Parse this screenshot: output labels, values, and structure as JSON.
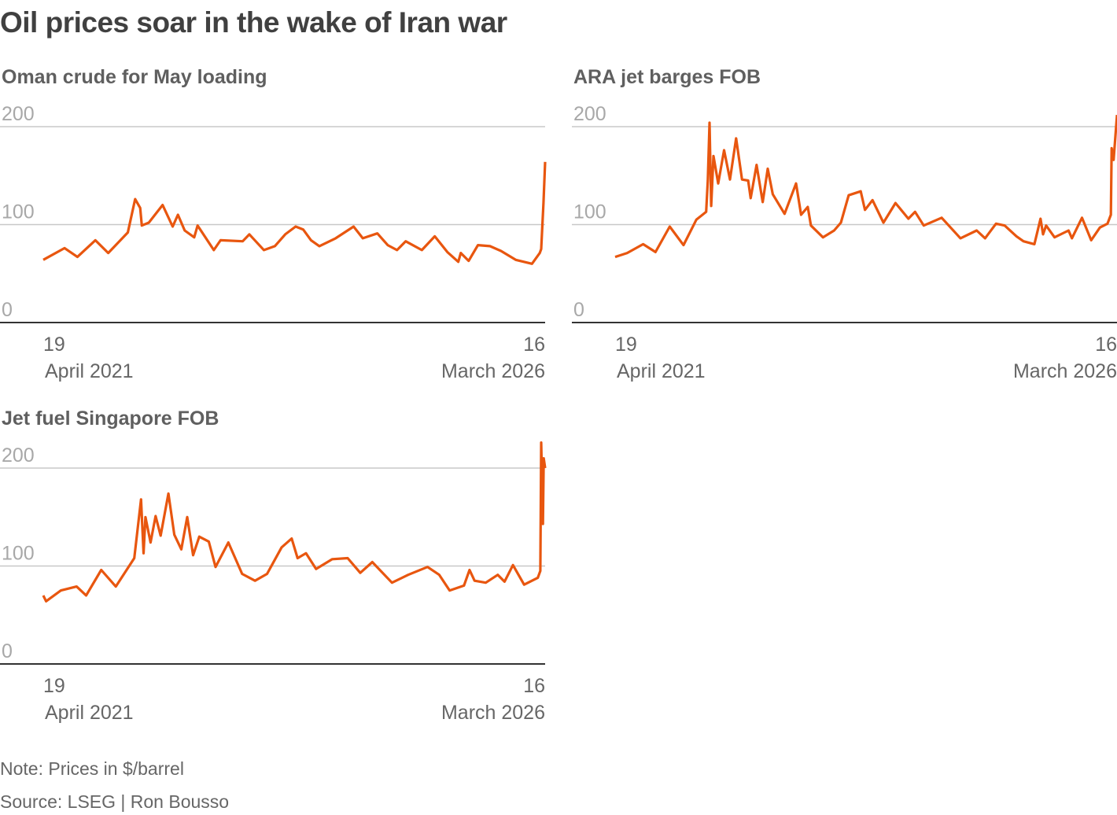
{
  "title": "Oil prices soar in the wake of Iran war",
  "note": "Note: Prices in $/barrel",
  "source": "Source: LSEG | Ron Bousso",
  "line_color": "#e8560f",
  "chart_data": [
    {
      "type": "line",
      "title": "Oman crude for May loading",
      "ylim": [
        0,
        200
      ],
      "yticks": [
        "200",
        "100",
        "0"
      ],
      "xlim": [
        "2021-04-19",
        "2026-03-16"
      ],
      "x_start_label": {
        "day": "19",
        "month": "April 2021"
      },
      "x_end_label": {
        "day": "16",
        "month": "March 2026"
      },
      "grid": true,
      "points": [
        [
          "2021-04-19",
          64
        ],
        [
          "2021-07-04",
          76
        ],
        [
          "2021-08-19",
          67
        ],
        [
          "2021-10-22",
          84
        ],
        [
          "2021-12-07",
          71
        ],
        [
          "2022-02-15",
          92
        ],
        [
          "2022-03-13",
          126
        ],
        [
          "2022-03-31",
          117
        ],
        [
          "2022-04-06",
          99
        ],
        [
          "2022-05-01",
          102
        ],
        [
          "2022-06-19",
          120
        ],
        [
          "2022-07-25",
          98
        ],
        [
          "2022-08-13",
          110
        ],
        [
          "2022-09-06",
          94
        ],
        [
          "2022-10-10",
          87
        ],
        [
          "2022-10-22",
          99
        ],
        [
          "2022-12-19",
          74
        ],
        [
          "2023-01-12",
          84
        ],
        [
          "2023-04-01",
          83
        ],
        [
          "2023-04-25",
          90
        ],
        [
          "2023-06-16",
          74
        ],
        [
          "2023-07-25",
          78
        ],
        [
          "2023-08-31",
          90
        ],
        [
          "2023-10-07",
          98
        ],
        [
          "2023-11-03",
          95
        ],
        [
          "2023-12-01",
          84
        ],
        [
          "2023-12-31",
          78
        ],
        [
          "2024-02-27",
          86
        ],
        [
          "2024-05-01",
          98
        ],
        [
          "2024-06-03",
          86
        ],
        [
          "2024-07-25",
          91
        ],
        [
          "2024-08-31",
          79
        ],
        [
          "2024-10-03",
          74
        ],
        [
          "2024-11-03",
          83
        ],
        [
          "2024-12-31",
          74
        ],
        [
          "2025-02-15",
          88
        ],
        [
          "2025-04-01",
          72
        ],
        [
          "2025-05-10",
          62
        ],
        [
          "2025-05-19",
          71
        ],
        [
          "2025-06-16",
          63
        ],
        [
          "2025-07-19",
          79
        ],
        [
          "2025-08-31",
          78
        ],
        [
          "2025-10-10",
          73
        ],
        [
          "2025-12-01",
          64
        ],
        [
          "2026-01-28",
          60
        ],
        [
          "2026-02-25",
          71
        ],
        [
          "2026-03-02",
          75
        ],
        [
          "2026-03-10",
          122
        ],
        [
          "2026-03-16",
          164
        ]
      ]
    },
    {
      "type": "line",
      "title": "ARA jet barges FOB",
      "ylim": [
        0,
        200
      ],
      "yticks": [
        "200",
        "100",
        "0"
      ],
      "xlim": [
        "2021-04-19",
        "2026-03-16"
      ],
      "x_start_label": {
        "day": "19",
        "month": "April 2021"
      },
      "x_end_label": {
        "day": "16",
        "month": "March 2026"
      },
      "grid": true,
      "points": [
        [
          "2021-04-19",
          67
        ],
        [
          "2021-06-01",
          71
        ],
        [
          "2021-07-28",
          80
        ],
        [
          "2021-09-10",
          72
        ],
        [
          "2021-10-31",
          98
        ],
        [
          "2021-12-19",
          79
        ],
        [
          "2022-02-03",
          105
        ],
        [
          "2022-03-10",
          113
        ],
        [
          "2022-03-16",
          145
        ],
        [
          "2022-03-22",
          204
        ],
        [
          "2022-03-28",
          119
        ],
        [
          "2022-04-05",
          170
        ],
        [
          "2022-04-22",
          142
        ],
        [
          "2022-05-13",
          176
        ],
        [
          "2022-06-03",
          146
        ],
        [
          "2022-06-25",
          188
        ],
        [
          "2022-07-16",
          146
        ],
        [
          "2022-08-07",
          145
        ],
        [
          "2022-08-16",
          127
        ],
        [
          "2022-09-06",
          161
        ],
        [
          "2022-09-28",
          123
        ],
        [
          "2022-10-16",
          157
        ],
        [
          "2022-11-03",
          131
        ],
        [
          "2022-12-15",
          111
        ],
        [
          "2023-01-25",
          142
        ],
        [
          "2023-02-12",
          110
        ],
        [
          "2023-03-08",
          118
        ],
        [
          "2023-03-19",
          99
        ],
        [
          "2023-05-01",
          87
        ],
        [
          "2023-06-10",
          94
        ],
        [
          "2023-07-04",
          102
        ],
        [
          "2023-08-01",
          130
        ],
        [
          "2023-09-13",
          134
        ],
        [
          "2023-09-28",
          115
        ],
        [
          "2023-10-25",
          125
        ],
        [
          "2023-12-03",
          102
        ],
        [
          "2024-01-15",
          122
        ],
        [
          "2024-03-01",
          106
        ],
        [
          "2024-03-25",
          113
        ],
        [
          "2024-04-25",
          99
        ],
        [
          "2024-06-28",
          107
        ],
        [
          "2024-09-03",
          86
        ],
        [
          "2024-10-31",
          94
        ],
        [
          "2024-11-30",
          86
        ],
        [
          "2025-01-08",
          101
        ],
        [
          "2025-02-08",
          99
        ],
        [
          "2025-03-22",
          88
        ],
        [
          "2025-04-16",
          83
        ],
        [
          "2025-05-25",
          80
        ],
        [
          "2025-06-16",
          106
        ],
        [
          "2025-06-25",
          90
        ],
        [
          "2025-07-06",
          99
        ],
        [
          "2025-08-05",
          87
        ],
        [
          "2025-09-24",
          94
        ],
        [
          "2025-10-06",
          86
        ],
        [
          "2025-11-11",
          107
        ],
        [
          "2025-12-14",
          84
        ],
        [
          "2026-01-14",
          97
        ],
        [
          "2026-02-10",
          101
        ],
        [
          "2026-02-22",
          110
        ],
        [
          "2026-02-25",
          178
        ],
        [
          "2026-03-04",
          166
        ],
        [
          "2026-03-16",
          212
        ]
      ]
    },
    {
      "type": "line",
      "title": "Jet fuel Singapore FOB",
      "ylim": [
        0,
        200
      ],
      "yticks": [
        "200",
        "100",
        "0"
      ],
      "xlim": [
        "2021-04-19",
        "2026-03-16"
      ],
      "x_start_label": {
        "day": "19",
        "month": "April 2021"
      },
      "x_end_label": {
        "day": "16",
        "month": "March 2026"
      },
      "grid": true,
      "points": [
        [
          "2021-04-19",
          70
        ],
        [
          "2021-04-29",
          64
        ],
        [
          "2021-06-21",
          75
        ],
        [
          "2021-08-16",
          79
        ],
        [
          "2021-09-19",
          70
        ],
        [
          "2021-11-12",
          96
        ],
        [
          "2022-01-03",
          79
        ],
        [
          "2022-03-10",
          108
        ],
        [
          "2022-04-03",
          168
        ],
        [
          "2022-04-12",
          113
        ],
        [
          "2022-04-19",
          150
        ],
        [
          "2022-05-07",
          124
        ],
        [
          "2022-05-25",
          151
        ],
        [
          "2022-06-12",
          131
        ],
        [
          "2022-07-10",
          174
        ],
        [
          "2022-07-31",
          132
        ],
        [
          "2022-08-25",
          117
        ],
        [
          "2022-09-15",
          150
        ],
        [
          "2022-10-06",
          111
        ],
        [
          "2022-10-28",
          130
        ],
        [
          "2022-12-01",
          125
        ],
        [
          "2022-12-25",
          99
        ],
        [
          "2023-02-09",
          124
        ],
        [
          "2023-03-30",
          92
        ],
        [
          "2023-05-15",
          85
        ],
        [
          "2023-06-27",
          92
        ],
        [
          "2023-08-18",
          119
        ],
        [
          "2023-09-23",
          128
        ],
        [
          "2023-10-14",
          108
        ],
        [
          "2023-11-13",
          113
        ],
        [
          "2023-12-19",
          97
        ],
        [
          "2024-02-15",
          107
        ],
        [
          "2024-04-10",
          108
        ],
        [
          "2024-05-25",
          93
        ],
        [
          "2024-07-07",
          104
        ],
        [
          "2024-09-15",
          83
        ],
        [
          "2024-11-12",
          91
        ],
        [
          "2025-01-20",
          99
        ],
        [
          "2025-03-03",
          91
        ],
        [
          "2025-04-09",
          75
        ],
        [
          "2025-05-30",
          80
        ],
        [
          "2025-06-19",
          96
        ],
        [
          "2025-07-07",
          85
        ],
        [
          "2025-08-16",
          83
        ],
        [
          "2025-09-28",
          91
        ],
        [
          "2025-10-22",
          84
        ],
        [
          "2025-11-21",
          101
        ],
        [
          "2025-12-31",
          81
        ],
        [
          "2026-02-18",
          88
        ],
        [
          "2026-02-27",
          95
        ],
        [
          "2026-03-02",
          226
        ],
        [
          "2026-03-08",
          143
        ],
        [
          "2026-03-11",
          210
        ],
        [
          "2026-03-16",
          200
        ]
      ]
    }
  ]
}
